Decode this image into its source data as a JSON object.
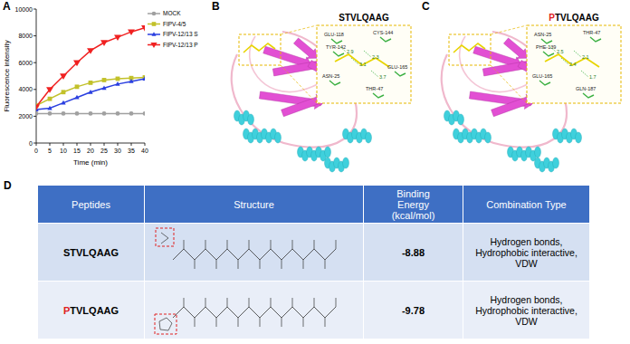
{
  "chart_data": {
    "type": "line",
    "panel_label": "A",
    "x_label": "Time (min)",
    "y_label": "Fluorescence intensity",
    "x": [
      0,
      5,
      10,
      15,
      20,
      25,
      30,
      35,
      40
    ],
    "xlim": [
      0,
      40
    ],
    "xticks": [
      0,
      5,
      10,
      15,
      20,
      25,
      30,
      35,
      40
    ],
    "ylim": [
      0,
      10000
    ],
    "yticks": [
      0,
      2000,
      4000,
      6000,
      8000,
      10000
    ],
    "legend": "upper right",
    "grid": false,
    "series": [
      {
        "name": "MOCK",
        "color": "#a0a0a0",
        "marker": "circle",
        "values": [
          2200,
          2200,
          2200,
          2200,
          2200,
          2200,
          2200,
          2200,
          2200
        ]
      },
      {
        "name": "FIPV-4/5",
        "color": "#c2c12a",
        "marker": "square",
        "values": [
          2800,
          3300,
          3800,
          4200,
          4500,
          4700,
          4800,
          4850,
          4900
        ]
      },
      {
        "name": "FIPV-12/13 S",
        "color": "#2a3fe0",
        "marker": "triangle_up",
        "values": [
          2500,
          2600,
          3000,
          3400,
          3800,
          4100,
          4400,
          4600,
          4800
        ]
      },
      {
        "name": "FIPV-12/13 P",
        "color": "#f02020",
        "marker": "triangle_down",
        "values": [
          2700,
          4000,
          5000,
          6000,
          6900,
          7500,
          7900,
          8300,
          8600
        ]
      }
    ]
  },
  "panels": [
    {
      "label": "B",
      "peptide": "STVLQAAG",
      "residues": [
        "GLU-118",
        "TYR-142",
        "CYS-144",
        "ASN-25",
        "THR-47",
        "GLU-165"
      ],
      "distances": [
        2.9,
        3.1,
        2.3,
        3.7
      ]
    },
    {
      "label": "C",
      "peptide": "PTVLQAAG",
      "residues": [
        "ASN-25",
        "PHE-139",
        "THR-47",
        "GLU-165",
        "GLN-187"
      ],
      "distances": [
        2.5,
        2.4,
        2.1,
        1.7
      ]
    }
  ],
  "table": {
    "label": "D",
    "header": [
      "Peptides",
      "Structure",
      "Binding Energy (kcal/mol)",
      "Combination Type"
    ],
    "rows": [
      {
        "peptide": "STVLQAAG",
        "binding_energy": -8.88,
        "combination_type": "Hydrogen bonds, Hydrophobic interactive, VDW"
      },
      {
        "peptide": "PTVLQAAG",
        "binding_energy": -9.78,
        "combination_type": "Hydrogen bonds, Hydrophobic interactive, VDW"
      }
    ]
  }
}
